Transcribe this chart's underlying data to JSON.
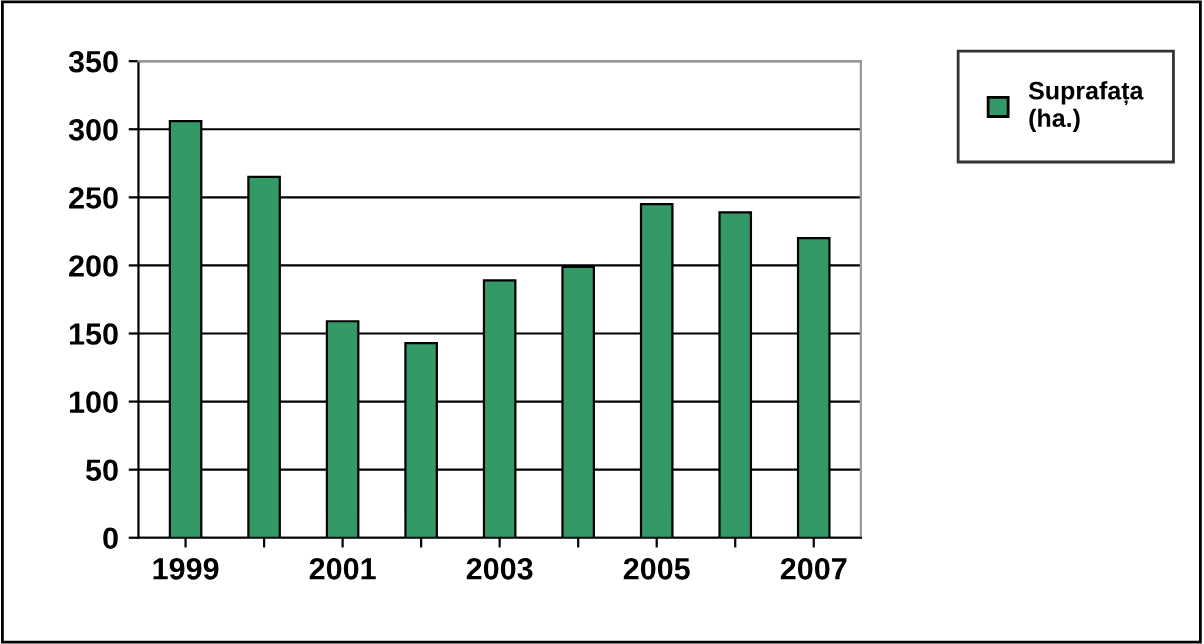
{
  "chart_data": {
    "type": "bar",
    "categories": [
      "1999",
      null,
      "2001",
      null,
      "2003",
      null,
      "2005",
      null,
      "2007"
    ],
    "series": [
      {
        "name": "Suprafața\n(ha.)",
        "color": "#339966",
        "values": [
          306,
          265,
          159,
          143,
          189,
          199,
          245,
          239,
          220
        ]
      }
    ],
    "ylim": [
      0,
      350
    ],
    "yticks": [
      0,
      50,
      100,
      150,
      200,
      250,
      300,
      350
    ],
    "grid": "y",
    "legend": "top right"
  }
}
